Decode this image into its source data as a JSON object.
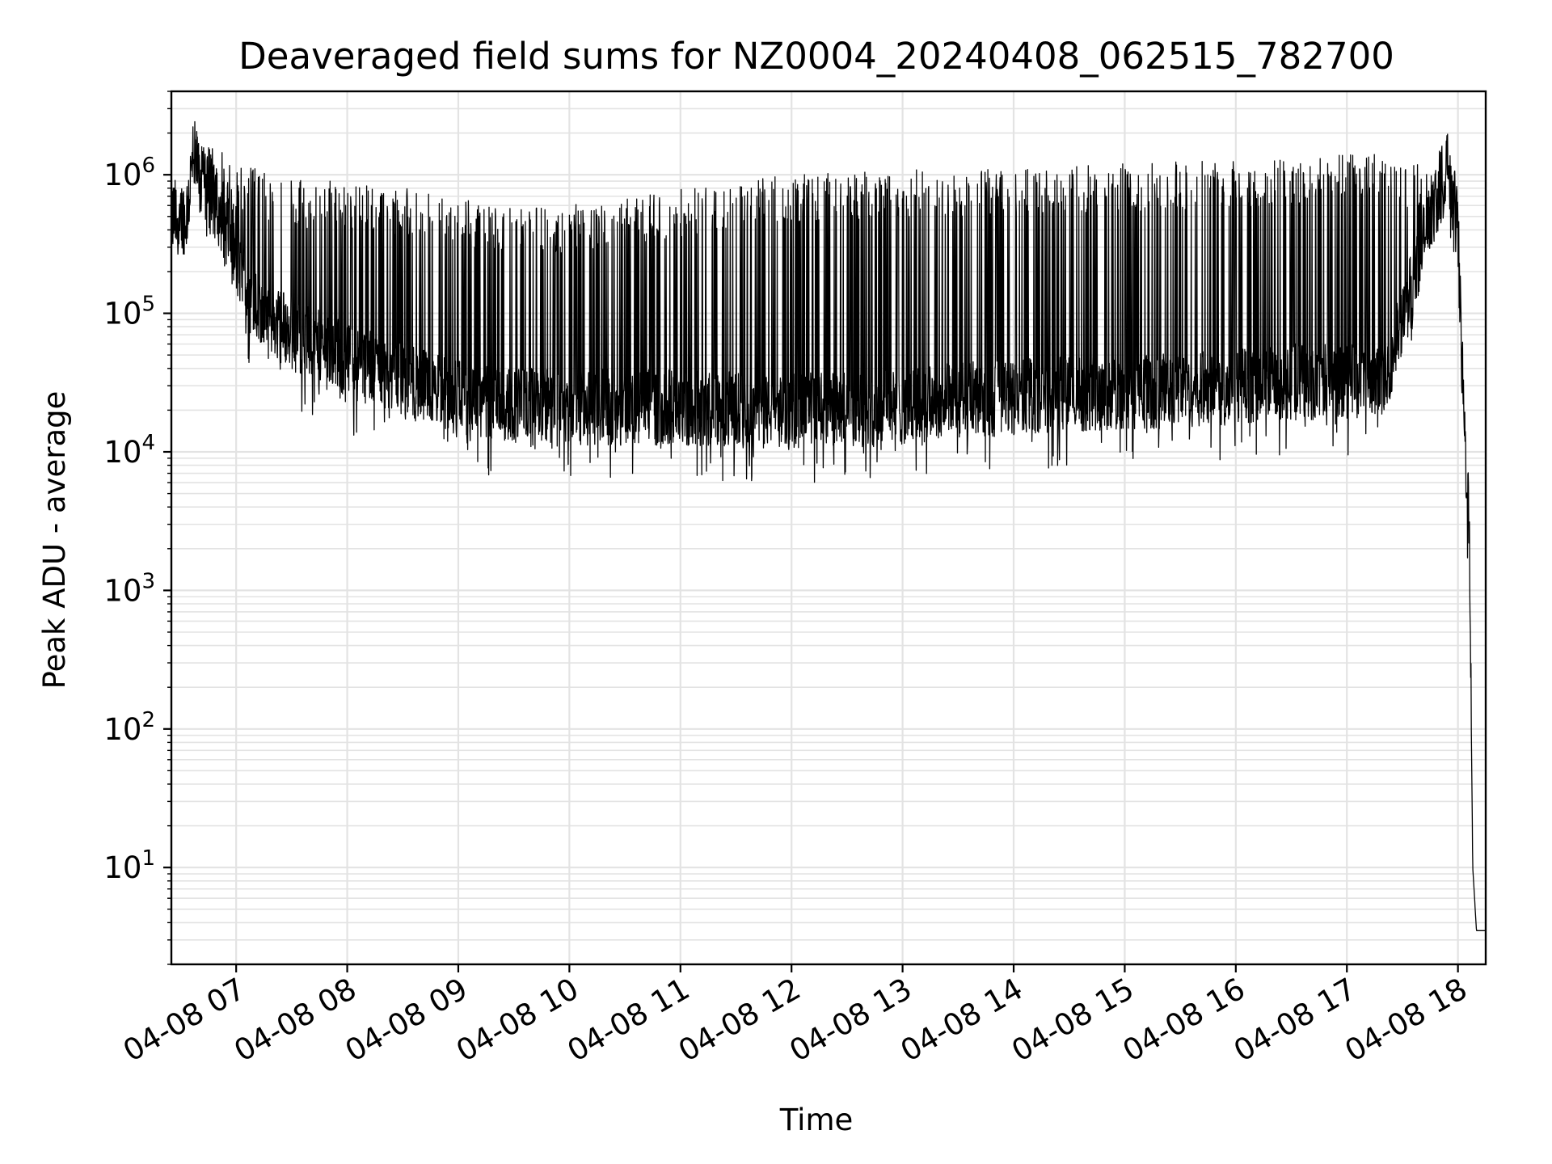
{
  "chart_data": {
    "type": "line",
    "title": "Deaveraged field sums for NZ0004_20240408_062515_782700",
    "xlabel": "Time",
    "ylabel": "Peak ADU - average",
    "x_scale": "time",
    "y_scale": "log",
    "xlim": [
      "2024-04-08 06:25",
      "2024-04-08 18:15"
    ],
    "ylim": [
      2,
      4000000
    ],
    "x_ticks": [
      {
        "value": "2024-04-08 07:00",
        "label": "04-08 07"
      },
      {
        "value": "2024-04-08 08:00",
        "label": "04-08 08"
      },
      {
        "value": "2024-04-08 09:00",
        "label": "04-08 09"
      },
      {
        "value": "2024-04-08 10:00",
        "label": "04-08 10"
      },
      {
        "value": "2024-04-08 11:00",
        "label": "04-08 11"
      },
      {
        "value": "2024-04-08 12:00",
        "label": "04-08 12"
      },
      {
        "value": "2024-04-08 13:00",
        "label": "04-08 13"
      },
      {
        "value": "2024-04-08 14:00",
        "label": "04-08 14"
      },
      {
        "value": "2024-04-08 15:00",
        "label": "04-08 15"
      },
      {
        "value": "2024-04-08 16:00",
        "label": "04-08 16"
      },
      {
        "value": "2024-04-08 17:00",
        "label": "04-08 17"
      },
      {
        "value": "2024-04-08 18:00",
        "label": "04-08 18"
      }
    ],
    "y_ticks": [
      {
        "value": 10,
        "base": "10",
        "exp": "1"
      },
      {
        "value": 100,
        "base": "10",
        "exp": "2"
      },
      {
        "value": 1000,
        "base": "10",
        "exp": "3"
      },
      {
        "value": 10000,
        "base": "10",
        "exp": "4"
      },
      {
        "value": 100000,
        "base": "10",
        "exp": "5"
      },
      {
        "value": 1000000,
        "base": "10",
        "exp": "6"
      }
    ],
    "grid": "on (major and minor)",
    "line_color": "#000000",
    "series": [
      {
        "x": [
          "2024-04-08 06:25",
          "2024-04-08 06:33",
          "2024-04-08 06:37",
          "2024-04-08 06:42",
          "2024-04-08 06:50",
          "2024-04-08 06:55",
          "2024-04-08 07:05",
          "2024-04-08 07:20",
          "2024-04-08 07:40",
          "2024-04-08 08:00",
          "2024-04-08 08:20",
          "2024-04-08 08:40",
          "2024-04-08 09:00",
          "2024-04-08 09:30",
          "2024-04-08 10:00",
          "2024-04-08 10:30",
          "2024-04-08 11:00",
          "2024-04-08 11:30",
          "2024-04-08 12:00",
          "2024-04-08 12:30",
          "2024-04-08 13:00",
          "2024-04-08 13:30",
          "2024-04-08 14:00",
          "2024-04-08 14:30",
          "2024-04-08 15:00",
          "2024-04-08 15:30",
          "2024-04-08 16:00",
          "2024-04-08 16:30",
          "2024-04-08 17:00",
          "2024-04-08 17:20",
          "2024-04-08 17:30",
          "2024-04-08 17:40",
          "2024-04-08 17:50",
          "2024-04-08 17:55",
          "2024-04-08 18:00",
          "2024-04-08 18:02",
          "2024-04-08 18:04",
          "2024-04-08 18:06",
          "2024-04-08 18:08",
          "2024-04-08 18:10",
          "2024-04-08 18:12",
          "2024-04-08 18:15"
        ],
        "baseline": [
          500000,
          500000,
          1400000,
          800000,
          600000,
          400000,
          150000,
          90000,
          60000,
          45000,
          38000,
          30000,
          25000,
          22000,
          21000,
          21000,
          21000,
          20000,
          20000,
          20000,
          21000,
          24000,
          25000,
          26000,
          27000,
          28000,
          30000,
          32000,
          32000,
          35000,
          80000,
          300000,
          800000,
          1100000,
          400000,
          50000,
          10000,
          3500,
          10,
          3.5,
          3.5,
          3.5
        ],
        "spike_peak": [
          600000,
          600000,
          1800000,
          1800000,
          1500000,
          1400000,
          1200000,
          1000000,
          900000,
          900000,
          800000,
          800000,
          700000,
          600000,
          600000,
          700000,
          800000,
          900000,
          1000000,
          1050000,
          1100000,
          1100000,
          1100000,
          1150000,
          1200000,
          1250000,
          1300000,
          1350000,
          1400000,
          1400000,
          1200000,
          1200000,
          1000000,
          1000000,
          800000,
          null,
          null,
          null,
          null,
          null,
          null,
          null
        ]
      }
    ]
  }
}
